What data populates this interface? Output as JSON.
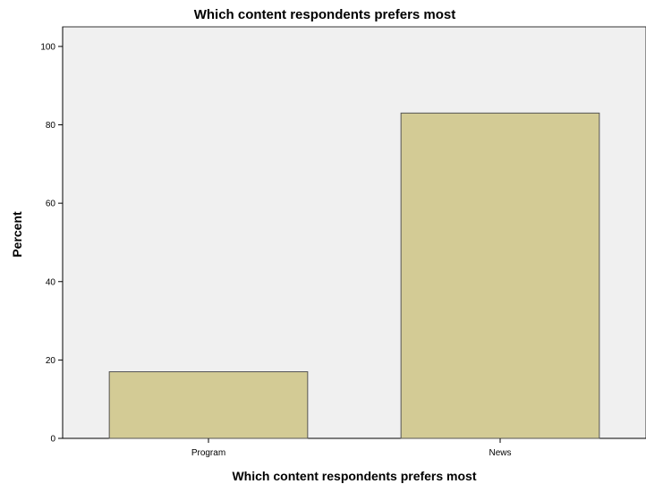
{
  "chart_data": {
    "type": "bar",
    "title": "Which content respondents prefers most",
    "xlabel": "Which content respondents prefers most",
    "ylabel": "Percent",
    "categories": [
      "Program",
      "News"
    ],
    "values": [
      17,
      83
    ],
    "ylim": [
      0,
      105
    ],
    "yticks": [
      "0",
      "20",
      "40",
      "60",
      "80",
      "100"
    ],
    "grid": false,
    "colors": {
      "bar_fill": "#d3cb95",
      "bar_stroke": "#555555",
      "plot_background": "#f0f0f0",
      "axis_line": "#000000"
    }
  }
}
